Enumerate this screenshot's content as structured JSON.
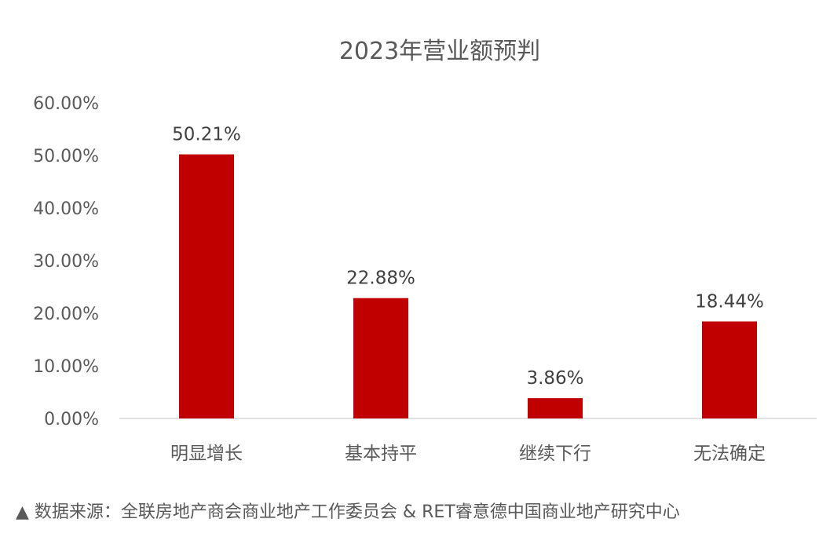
{
  "chart_data": {
    "type": "bar",
    "title": "2023年营业额预判",
    "categories": [
      "明显增长",
      "基本持平",
      "继续下行",
      "无法确定"
    ],
    "values": [
      50.21,
      22.88,
      3.86,
      18.44
    ],
    "data_labels": [
      "50.21%",
      "22.88%",
      "3.86%",
      "18.44%"
    ],
    "ylim": [
      0,
      60
    ],
    "y_ticks": [
      0,
      10,
      20,
      30,
      40,
      50,
      60
    ],
    "y_tick_labels": [
      "0.00%",
      "10.00%",
      "20.00%",
      "30.00%",
      "40.00%",
      "50.00%",
      "60.00%"
    ],
    "xlabel": "",
    "ylabel": "",
    "grid": false,
    "legend": "none",
    "bar_color": "#C00000"
  },
  "source": {
    "marker": "▲",
    "text": "数据来源：全联房地产商会商业地产工作委员会 & RET睿意德中国商业地产研究中心"
  }
}
